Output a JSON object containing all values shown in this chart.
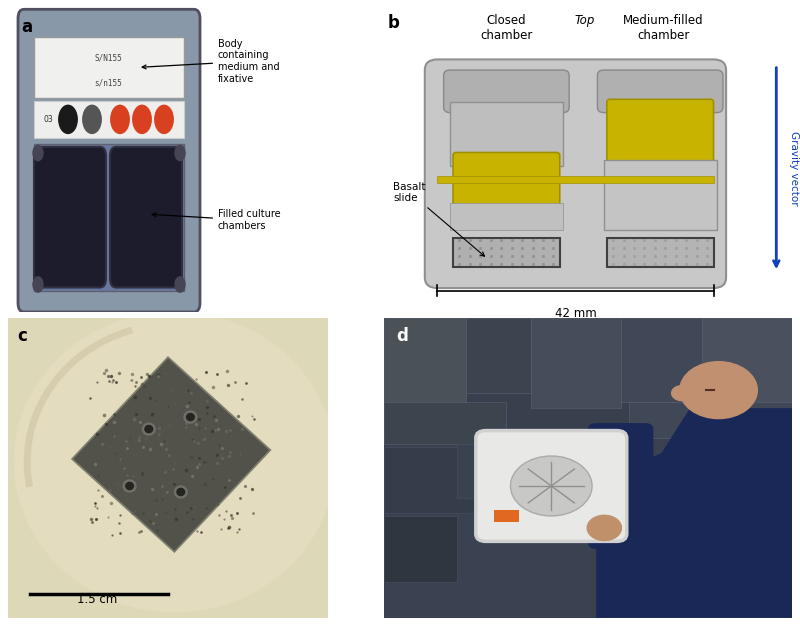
{
  "panel_labels": [
    "a",
    "b",
    "c",
    "d"
  ],
  "panel_label_fontsize": 12,
  "panel_label_fontweight": "bold",
  "panel_a": {
    "bg_color": "#b8c8d8",
    "annotation1_text": "Body\ncontaining\nmedium and\nfixative",
    "annotation2_text": "Filled culture\nchambers",
    "circles_colors": [
      "#1a1a1a",
      "#555555",
      "#d84020",
      "#d84020",
      "#d84020"
    ]
  },
  "panel_b": {
    "bg_color": "#f5f5f5",
    "title_closed": "Closed\nchamber",
    "title_medium": "Medium-filled\nchamber",
    "title_top": "Top",
    "label_basalt": "Basalt\nslide",
    "label_42mm": "42 mm",
    "label_gravity": "Gravity vector",
    "outer_body_color": "#b8b8b8",
    "inner_chamber_color": "#c8b400",
    "basalt_color": "#a8a8a8"
  },
  "panel_c": {
    "bg_color": "#ddd8b8",
    "rock_color": "#5a5a4a",
    "scale_text": "1.5 cm"
  },
  "panel_d": {
    "bg_color": "#2a3040"
  },
  "figure_bg": "#ffffff",
  "text_color": "#000000",
  "blue_arrow_color": "#1040c0"
}
